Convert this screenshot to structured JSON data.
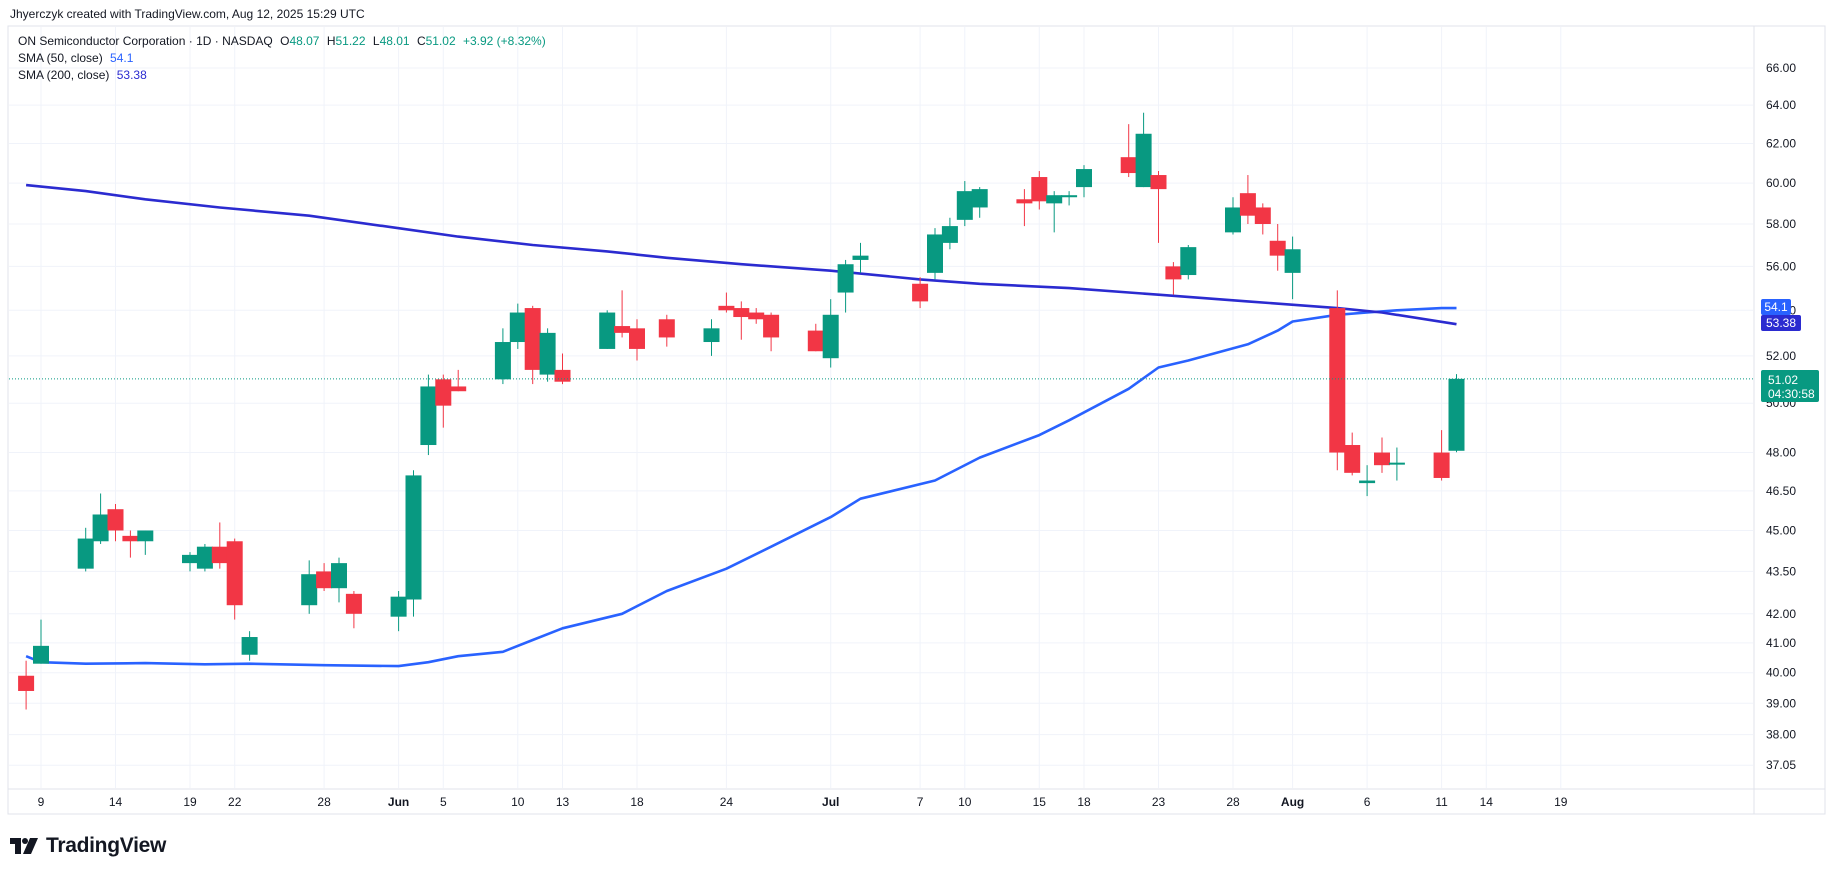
{
  "header": {
    "credit": "Jhyerczyk created with TradingView.com, Aug 12, 2025 15:29 UTC"
  },
  "legend": {
    "symbol": "ON Semiconductor Corporation · 1D · NASDAQ",
    "o_label": "O",
    "o_value": "48.07",
    "h_label": "H",
    "h_value": "51.22",
    "l_label": "L",
    "l_value": "48.01",
    "c_label": "C",
    "c_value": "51.02",
    "change": "+3.92 (+8.32%)",
    "sma50_label": "SMA (50, close)",
    "sma50_value": "54.1",
    "sma200_label": "SMA (200, close)",
    "sma200_value": "53.38"
  },
  "price_tags": {
    "sma50": "54.1",
    "sma200": "53.38",
    "last_price": "51.02",
    "countdown": "04:30:58"
  },
  "brand": {
    "name": "TradingView"
  },
  "colors": {
    "up": "#089981",
    "down": "#f23645",
    "sma50": "#2962ff",
    "sma200": "#2b2bd0",
    "grid": "#f0f3fa",
    "last_price": "#089981"
  },
  "chart_data": {
    "type": "candlestick",
    "title": "",
    "y_scale": "log",
    "ylim": [
      36.6,
      67.1
    ],
    "y_ticks": [
      "37.05",
      "38.00",
      "39.00",
      "40.00",
      "41.00",
      "42.00",
      "43.50",
      "45.00",
      "46.50",
      "48.00",
      "50.00",
      "52.00",
      "54.00",
      "56.00",
      "58.00",
      "60.00",
      "62.00",
      "64.00",
      "66.00"
    ],
    "x_ticks": [
      {
        "label": "9",
        "date": "2025-05-09"
      },
      {
        "label": "14",
        "date": "2025-05-14"
      },
      {
        "label": "19",
        "date": "2025-05-19"
      },
      {
        "label": "22",
        "date": "2025-05-22"
      },
      {
        "label": "28",
        "date": "2025-05-28"
      },
      {
        "label": "Jun",
        "date": "2025-06-02"
      },
      {
        "label": "5",
        "date": "2025-06-05"
      },
      {
        "label": "10",
        "date": "2025-06-10"
      },
      {
        "label": "13",
        "date": "2025-06-13"
      },
      {
        "label": "18",
        "date": "2025-06-18"
      },
      {
        "label": "24",
        "date": "2025-06-24"
      },
      {
        "label": "Jul",
        "date": "2025-07-01"
      },
      {
        "label": "7",
        "date": "2025-07-07"
      },
      {
        "label": "10",
        "date": "2025-07-10"
      },
      {
        "label": "15",
        "date": "2025-07-15"
      },
      {
        "label": "18",
        "date": "2025-07-18"
      },
      {
        "label": "23",
        "date": "2025-07-23"
      },
      {
        "label": "28",
        "date": "2025-07-28"
      },
      {
        "label": "Aug",
        "date": "2025-08-01"
      },
      {
        "label": "6",
        "date": "2025-08-06"
      },
      {
        "label": "11",
        "date": "2025-08-11"
      },
      {
        "label": "14",
        "date": "2025-08-14"
      },
      {
        "label": "19",
        "date": "2025-08-19"
      }
    ],
    "candles": [
      {
        "date": "2025-05-08",
        "o": 39.9,
        "h": 40.4,
        "l": 38.8,
        "c": 39.4
      },
      {
        "date": "2025-05-09",
        "o": 40.3,
        "h": 41.8,
        "l": 40.3,
        "c": 40.9
      },
      {
        "date": "2025-05-12",
        "o": 43.6,
        "h": 45.1,
        "l": 43.5,
        "c": 44.7
      },
      {
        "date": "2025-05-13",
        "o": 44.6,
        "h": 46.4,
        "l": 44.5,
        "c": 45.6
      },
      {
        "date": "2025-05-14",
        "o": 45.8,
        "h": 46.0,
        "l": 44.6,
        "c": 45.0
      },
      {
        "date": "2025-05-15",
        "o": 44.8,
        "h": 45.0,
        "l": 44.0,
        "c": 44.6
      },
      {
        "date": "2025-05-16",
        "o": 44.6,
        "h": 45.0,
        "l": 44.1,
        "c": 45.0
      },
      {
        "date": "2025-05-19",
        "o": 43.8,
        "h": 44.2,
        "l": 43.5,
        "c": 44.1
      },
      {
        "date": "2025-05-20",
        "o": 43.6,
        "h": 44.5,
        "l": 43.5,
        "c": 44.4
      },
      {
        "date": "2025-05-21",
        "o": 44.4,
        "h": 45.3,
        "l": 43.6,
        "c": 43.8
      },
      {
        "date": "2025-05-22",
        "o": 44.6,
        "h": 44.7,
        "l": 41.8,
        "c": 42.3
      },
      {
        "date": "2025-05-23",
        "o": 40.6,
        "h": 41.4,
        "l": 40.4,
        "c": 41.2
      },
      {
        "date": "2025-05-27",
        "o": 42.3,
        "h": 43.9,
        "l": 42.0,
        "c": 43.4
      },
      {
        "date": "2025-05-28",
        "o": 43.5,
        "h": 43.8,
        "l": 42.8,
        "c": 42.9
      },
      {
        "date": "2025-05-29",
        "o": 42.9,
        "h": 44.0,
        "l": 42.4,
        "c": 43.8
      },
      {
        "date": "2025-05-30",
        "o": 42.7,
        "h": 42.8,
        "l": 41.5,
        "c": 42.0
      },
      {
        "date": "2025-06-02",
        "o": 41.9,
        "h": 42.8,
        "l": 41.4,
        "c": 42.6
      },
      {
        "date": "2025-06-03",
        "o": 42.5,
        "h": 47.3,
        "l": 41.9,
        "c": 47.1
      },
      {
        "date": "2025-06-04",
        "o": 48.3,
        "h": 51.2,
        "l": 47.9,
        "c": 50.7
      },
      {
        "date": "2025-06-05",
        "o": 51.0,
        "h": 51.2,
        "l": 49.0,
        "c": 49.9
      },
      {
        "date": "2025-06-06",
        "o": 50.7,
        "h": 51.4,
        "l": 50.5,
        "c": 50.5
      },
      {
        "date": "2025-06-09",
        "o": 51.0,
        "h": 53.2,
        "l": 50.8,
        "c": 52.6
      },
      {
        "date": "2025-06-10",
        "o": 52.6,
        "h": 54.3,
        "l": 52.3,
        "c": 53.9
      },
      {
        "date": "2025-06-11",
        "o": 54.1,
        "h": 54.2,
        "l": 50.8,
        "c": 51.4
      },
      {
        "date": "2025-06-12",
        "o": 51.2,
        "h": 53.2,
        "l": 50.9,
        "c": 53.0
      },
      {
        "date": "2025-06-13",
        "o": 51.4,
        "h": 52.1,
        "l": 50.8,
        "c": 50.9
      },
      {
        "date": "2025-06-16",
        "o": 52.3,
        "h": 54.0,
        "l": 52.3,
        "c": 53.9
      },
      {
        "date": "2025-06-17",
        "o": 53.3,
        "h": 54.9,
        "l": 52.8,
        "c": 53.0
      },
      {
        "date": "2025-06-18",
        "o": 53.2,
        "h": 53.6,
        "l": 51.8,
        "c": 52.3
      },
      {
        "date": "2025-06-20",
        "o": 53.6,
        "h": 53.8,
        "l": 52.4,
        "c": 52.8
      },
      {
        "date": "2025-06-23",
        "o": 52.6,
        "h": 53.6,
        "l": 52.0,
        "c": 53.2
      },
      {
        "date": "2025-06-24",
        "o": 54.2,
        "h": 54.8,
        "l": 53.9,
        "c": 54.0
      },
      {
        "date": "2025-06-25",
        "o": 54.1,
        "h": 54.4,
        "l": 52.7,
        "c": 53.7
      },
      {
        "date": "2025-06-26",
        "o": 53.9,
        "h": 54.1,
        "l": 53.4,
        "c": 53.6
      },
      {
        "date": "2025-06-27",
        "o": 53.8,
        "h": 53.9,
        "l": 52.2,
        "c": 52.8
      },
      {
        "date": "2025-06-30",
        "o": 53.1,
        "h": 53.4,
        "l": 52.2,
        "c": 52.2
      },
      {
        "date": "2025-07-01",
        "o": 51.9,
        "h": 54.5,
        "l": 51.5,
        "c": 53.8
      },
      {
        "date": "2025-07-02",
        "o": 54.8,
        "h": 56.3,
        "l": 53.9,
        "c": 56.1
      },
      {
        "date": "2025-07-03",
        "o": 56.3,
        "h": 57.1,
        "l": 55.7,
        "c": 56.5
      },
      {
        "date": "2025-07-07",
        "o": 55.2,
        "h": 55.5,
        "l": 54.1,
        "c": 54.4
      },
      {
        "date": "2025-07-08",
        "o": 55.7,
        "h": 57.8,
        "l": 55.4,
        "c": 57.5
      },
      {
        "date": "2025-07-09",
        "o": 57.1,
        "h": 58.3,
        "l": 56.8,
        "c": 57.9
      },
      {
        "date": "2025-07-10",
        "o": 58.2,
        "h": 60.1,
        "l": 57.9,
        "c": 59.6
      },
      {
        "date": "2025-07-11",
        "o": 58.8,
        "h": 59.8,
        "l": 58.3,
        "c": 59.7
      },
      {
        "date": "2025-07-14",
        "o": 59.2,
        "h": 59.7,
        "l": 57.9,
        "c": 59.0
      },
      {
        "date": "2025-07-15",
        "o": 60.3,
        "h": 60.6,
        "l": 58.7,
        "c": 59.1
      },
      {
        "date": "2025-07-16",
        "o": 59.0,
        "h": 59.6,
        "l": 57.6,
        "c": 59.4
      },
      {
        "date": "2025-07-17",
        "o": 59.3,
        "h": 59.6,
        "l": 58.9,
        "c": 59.4
      },
      {
        "date": "2025-07-18",
        "o": 59.8,
        "h": 60.9,
        "l": 59.3,
        "c": 60.7
      },
      {
        "date": "2025-07-21",
        "o": 61.3,
        "h": 63.0,
        "l": 60.3,
        "c": 60.5
      },
      {
        "date": "2025-07-22",
        "o": 59.8,
        "h": 63.6,
        "l": 59.8,
        "c": 62.5
      },
      {
        "date": "2025-07-23",
        "o": 60.4,
        "h": 60.6,
        "l": 57.1,
        "c": 59.7
      },
      {
        "date": "2025-07-24",
        "o": 56.0,
        "h": 56.2,
        "l": 54.7,
        "c": 55.4
      },
      {
        "date": "2025-07-25",
        "o": 55.6,
        "h": 57.0,
        "l": 55.4,
        "c": 56.9
      },
      {
        "date": "2025-07-28",
        "o": 57.6,
        "h": 59.3,
        "l": 57.5,
        "c": 58.8
      },
      {
        "date": "2025-07-29",
        "o": 59.5,
        "h": 60.4,
        "l": 58.0,
        "c": 58.4
      },
      {
        "date": "2025-07-30",
        "o": 58.8,
        "h": 59.0,
        "l": 57.5,
        "c": 58.0
      },
      {
        "date": "2025-07-31",
        "o": 57.2,
        "h": 58.0,
        "l": 55.8,
        "c": 56.5
      },
      {
        "date": "2025-08-01",
        "o": 55.7,
        "h": 57.4,
        "l": 54.5,
        "c": 56.8
      },
      {
        "date": "2025-08-04",
        "o": 54.1,
        "h": 54.9,
        "l": 47.3,
        "c": 48.0
      },
      {
        "date": "2025-08-05",
        "o": 48.3,
        "h": 48.8,
        "l": 47.1,
        "c": 47.2
      },
      {
        "date": "2025-08-06",
        "o": 46.8,
        "h": 47.5,
        "l": 46.3,
        "c": 46.9
      },
      {
        "date": "2025-08-07",
        "o": 48.0,
        "h": 48.6,
        "l": 47.2,
        "c": 47.5
      },
      {
        "date": "2025-08-08",
        "o": 47.6,
        "h": 48.2,
        "l": 46.9,
        "c": 47.6
      },
      {
        "date": "2025-08-11",
        "o": 48.0,
        "h": 48.9,
        "l": 46.9,
        "c": 47.0
      },
      {
        "date": "2025-08-12",
        "o": 48.07,
        "h": 51.22,
        "l": 48.01,
        "c": 51.02
      }
    ],
    "series": [
      {
        "name": "SMA (50, close)",
        "color": "#2962ff",
        "points": [
          [
            "2025-05-08",
            40.55
          ],
          [
            "2025-05-09",
            40.35
          ],
          [
            "2025-05-12",
            40.3
          ],
          [
            "2025-05-16",
            40.32
          ],
          [
            "2025-05-20",
            40.28
          ],
          [
            "2025-05-23",
            40.3
          ],
          [
            "2025-05-28",
            40.25
          ],
          [
            "2025-06-02",
            40.22
          ],
          [
            "2025-06-04",
            40.35
          ],
          [
            "2025-06-06",
            40.55
          ],
          [
            "2025-06-09",
            40.7
          ],
          [
            "2025-06-11",
            41.1
          ],
          [
            "2025-06-13",
            41.5
          ],
          [
            "2025-06-17",
            42.0
          ],
          [
            "2025-06-20",
            42.8
          ],
          [
            "2025-06-24",
            43.6
          ],
          [
            "2025-06-27",
            44.4
          ],
          [
            "2025-07-01",
            45.5
          ],
          [
            "2025-07-03",
            46.2
          ],
          [
            "2025-07-08",
            46.9
          ],
          [
            "2025-07-11",
            47.8
          ],
          [
            "2025-07-15",
            48.7
          ],
          [
            "2025-07-17",
            49.3
          ],
          [
            "2025-07-21",
            50.6
          ],
          [
            "2025-07-23",
            51.5
          ],
          [
            "2025-07-25",
            51.8
          ],
          [
            "2025-07-29",
            52.5
          ],
          [
            "2025-07-31",
            53.1
          ],
          [
            "2025-08-01",
            53.5
          ],
          [
            "2025-08-04",
            53.8
          ],
          [
            "2025-08-06",
            53.9
          ],
          [
            "2025-08-08",
            54.0
          ],
          [
            "2025-08-11",
            54.1
          ],
          [
            "2025-08-12",
            54.1
          ]
        ]
      },
      {
        "name": "SMA (200, close)",
        "color": "#2b2bd0",
        "points": [
          [
            "2025-05-08",
            59.9
          ],
          [
            "2025-05-12",
            59.6
          ],
          [
            "2025-05-16",
            59.2
          ],
          [
            "2025-05-21",
            58.8
          ],
          [
            "2025-05-27",
            58.4
          ],
          [
            "2025-06-02",
            57.8
          ],
          [
            "2025-06-06",
            57.4
          ],
          [
            "2025-06-11",
            57.0
          ],
          [
            "2025-06-16",
            56.7
          ],
          [
            "2025-06-20",
            56.4
          ],
          [
            "2025-06-25",
            56.1
          ],
          [
            "2025-07-01",
            55.8
          ],
          [
            "2025-07-07",
            55.4
          ],
          [
            "2025-07-11",
            55.2
          ],
          [
            "2025-07-17",
            55.0
          ],
          [
            "2025-07-23",
            54.7
          ],
          [
            "2025-07-29",
            54.4
          ],
          [
            "2025-08-04",
            54.1
          ],
          [
            "2025-08-07",
            53.9
          ],
          [
            "2025-08-12",
            53.38
          ]
        ]
      }
    ],
    "last_price_line": 51.02,
    "grid": true,
    "legend_position": "top-left"
  }
}
